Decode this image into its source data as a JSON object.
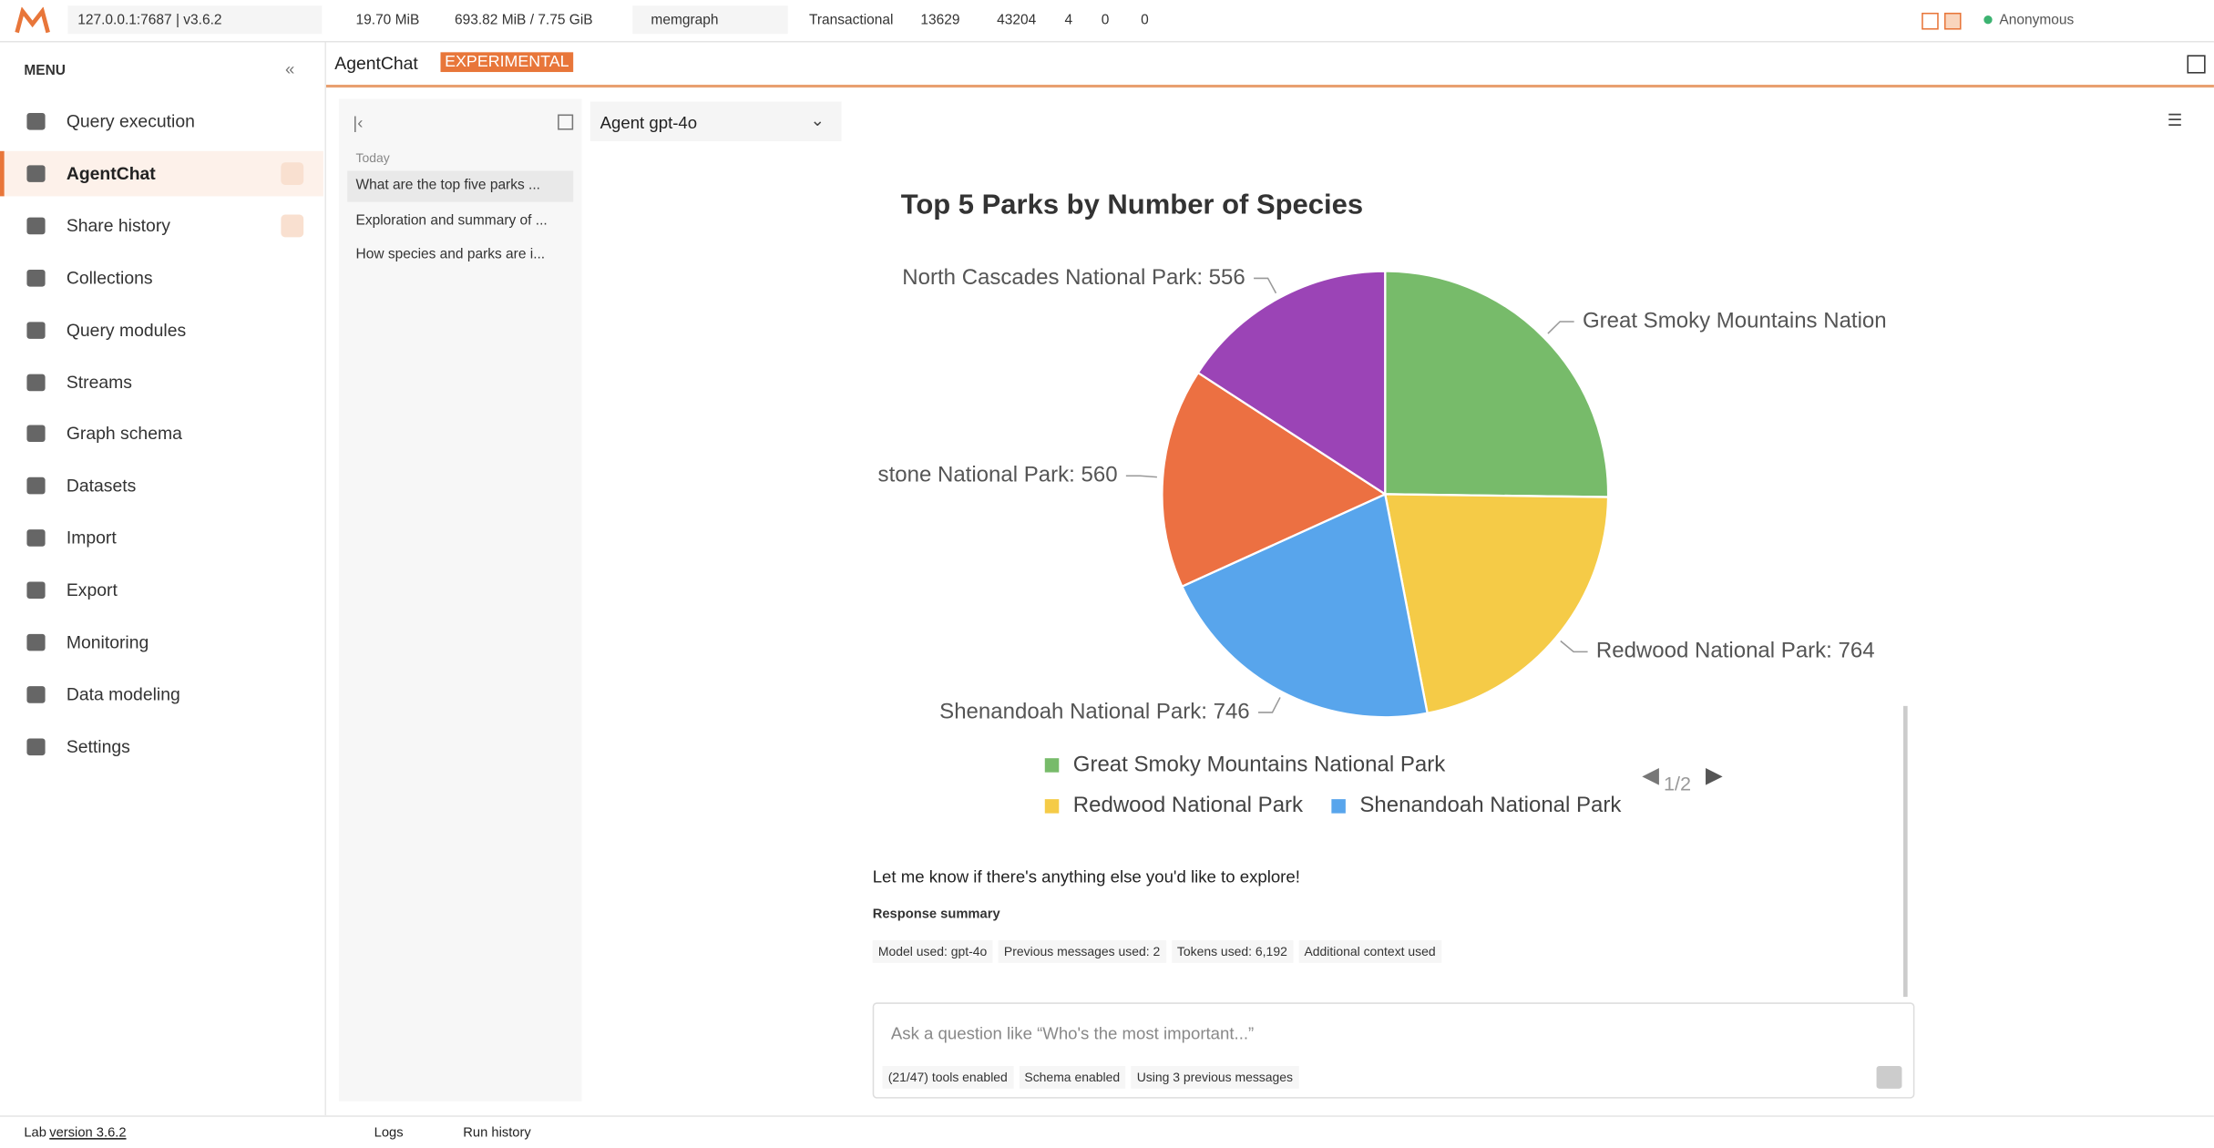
{
  "topbar": {
    "host": "127.0.0.1:7687 | v3.6.2",
    "memory": "19.70 MiB",
    "disk": "693.82 MiB / 7.75 GiB",
    "database": "memgraph",
    "mode": "Transactional",
    "nodes": "13629",
    "edges": "43204",
    "stat_a": "4",
    "stat_b": "0",
    "stat_c": "0",
    "user": "Anonymous"
  },
  "sidebar": {
    "title": "MENU",
    "items": [
      "Query execution",
      "AgentChat",
      "Share history",
      "Collections",
      "Query modules",
      "Streams",
      "Graph schema",
      "Datasets",
      "Import",
      "Export",
      "Monitoring",
      "Data modeling",
      "Settings"
    ]
  },
  "header": {
    "title": "AgentChat",
    "badge": "EXPERIMENTAL"
  },
  "history": {
    "heading": "Today",
    "items": [
      "What are the top five parks ...",
      "Exploration and summary of ...",
      "How species and parks are i..."
    ]
  },
  "agent": "Agent gpt-4o",
  "chart_data": {
    "type": "pie",
    "title": "Top 5 Parks by Number of Species",
    "categories": [
      "Great Smoky Mountains National Park",
      "Redwood National Park",
      "Shenandoah National Park",
      null,
      null
    ],
    "values": [
      885,
      764,
      746,
      560,
      556
    ],
    "value_labels": [
      "Great Smoky Mountains Nation",
      "Redwood National Park: 764",
      "Shenandoah National Park: 746",
      "stone National Park: 560",
      "North Cascades National Park: 556"
    ],
    "colors": [
      "#77bb6a",
      "#f5cb47",
      "#58a5ec",
      "#ec7042",
      "#9b44b6"
    ],
    "legend_page": "1/2"
  },
  "chat": {
    "message": "Let me know if there's anything else you'd like to explore!",
    "summary_title": "Response summary",
    "summary": [
      "Model used: gpt-4o",
      "Previous messages used: 2",
      "Tokens used: 6,192",
      "Additional context used"
    ]
  },
  "input": {
    "placeholder": "Ask a question like “Who's the most important...”",
    "chips": [
      "(21/47) tools enabled",
      "Schema enabled",
      "Using 3 previous messages"
    ]
  },
  "footer": {
    "lab": "Lab",
    "version": "version 3.6.2",
    "logs": "Logs",
    "run_history": "Run history"
  }
}
